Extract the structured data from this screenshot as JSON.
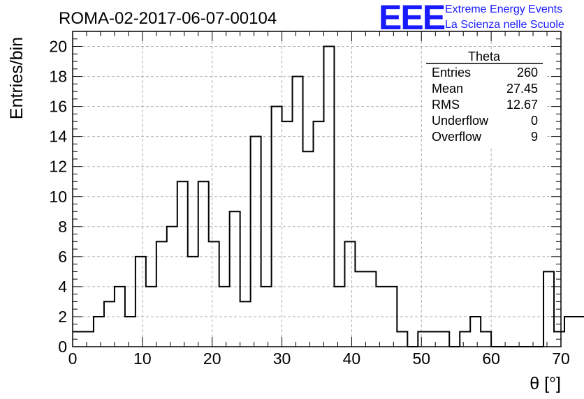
{
  "title": "ROMA-02-2017-06-07-00104",
  "logo": {
    "mark": "EEE",
    "line1": "Extreme Energy Events",
    "line2": "La Scienza nelle Scuole",
    "color": "#1a1aff"
  },
  "stats": {
    "name": "Theta",
    "rows": [
      {
        "label": "Entries",
        "value": "260"
      },
      {
        "label": "Mean",
        "value": "27.45"
      },
      {
        "label": "RMS",
        "value": "12.67"
      },
      {
        "label": "Underflow",
        "value": "0"
      },
      {
        "label": "Overflow",
        "value": "9"
      }
    ]
  },
  "chart_data": {
    "type": "bar",
    "title": "ROMA-02-2017-06-07-00104",
    "xlabel": "θ [°]",
    "ylabel": "Entries/bin",
    "xlim": [
      0,
      70
    ],
    "ylim": [
      0,
      21
    ],
    "grid": true,
    "bin_width": 1.5,
    "x_start": 0,
    "values": [
      1,
      1,
      2,
      3,
      4,
      2,
      6,
      4,
      7,
      8,
      11,
      6,
      11,
      7,
      4,
      9,
      3,
      14,
      4,
      16,
      15,
      18,
      13,
      15,
      20,
      4,
      7,
      5,
      5,
      4,
      4,
      1,
      0,
      1,
      1,
      1,
      0,
      1,
      2,
      1,
      0,
      0,
      0,
      0,
      0,
      5,
      1,
      2,
      2,
      0
    ],
    "x_ticks": [
      0,
      10,
      20,
      30,
      40,
      50,
      60,
      70
    ],
    "y_ticks": [
      0,
      2,
      4,
      6,
      8,
      10,
      12,
      14,
      16,
      18,
      20
    ]
  }
}
